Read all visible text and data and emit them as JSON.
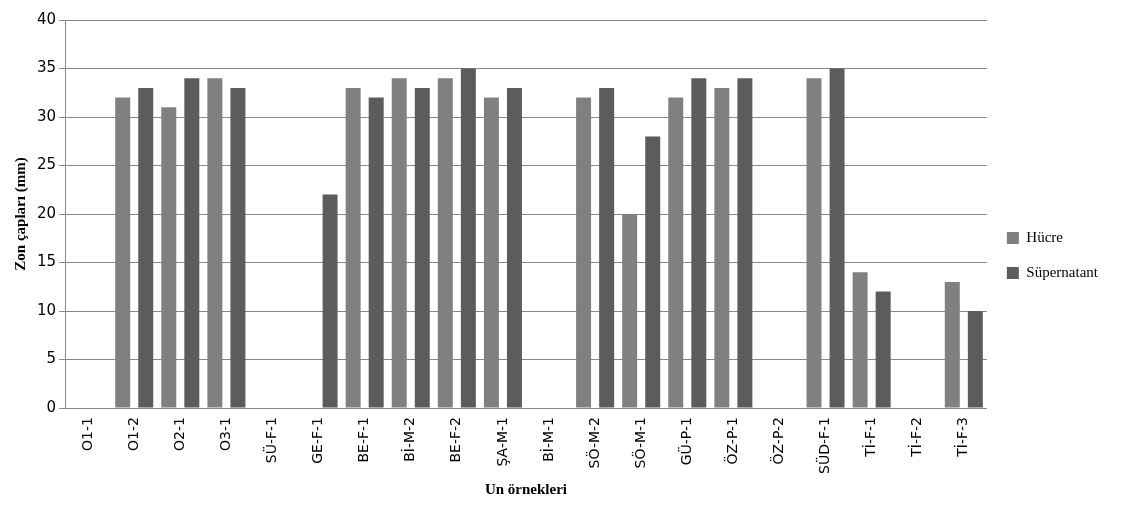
{
  "chart_data": {
    "type": "bar",
    "xlabel": "Un örnekleri",
    "ylabel": "Zon çapları (mm)",
    "categories": [
      "O1-1",
      "O1-2",
      "O2-1",
      "O3-1",
      "SÜ-F-1",
      "GE-F-1",
      "BE-F-1",
      "Bİ-M-2",
      "BE-F-2",
      "ŞA-M-1",
      "Bİ-M-1",
      "SÖ-M-2",
      "SÖ-M-1",
      "GÜ-P-1",
      "ÖZ-P-1",
      "ÖZ-P-2",
      "SÜD-F-1",
      "Tİ-F-1",
      "Tİ-F-2",
      "Tİ-F-3"
    ],
    "series": [
      {
        "name": "Hücre",
        "color": "#808080",
        "values": [
          0,
          32,
          31,
          34,
          0,
          0,
          33,
          34,
          34,
          32,
          0,
          32,
          20,
          32,
          33,
          0,
          34,
          14,
          0,
          13
        ]
      },
      {
        "name": "Süpernatant",
        "color": "#5c5c5c",
        "values": [
          0,
          33,
          34,
          33,
          0,
          22,
          32,
          33,
          35,
          33,
          0,
          33,
          28,
          34,
          34,
          0,
          35,
          12,
          0,
          10
        ]
      }
    ],
    "ylim": [
      0,
      40
    ],
    "yticks": [
      0,
      5,
      10,
      15,
      20,
      25,
      30,
      35,
      40
    ],
    "grid": "y",
    "legend": "right"
  }
}
